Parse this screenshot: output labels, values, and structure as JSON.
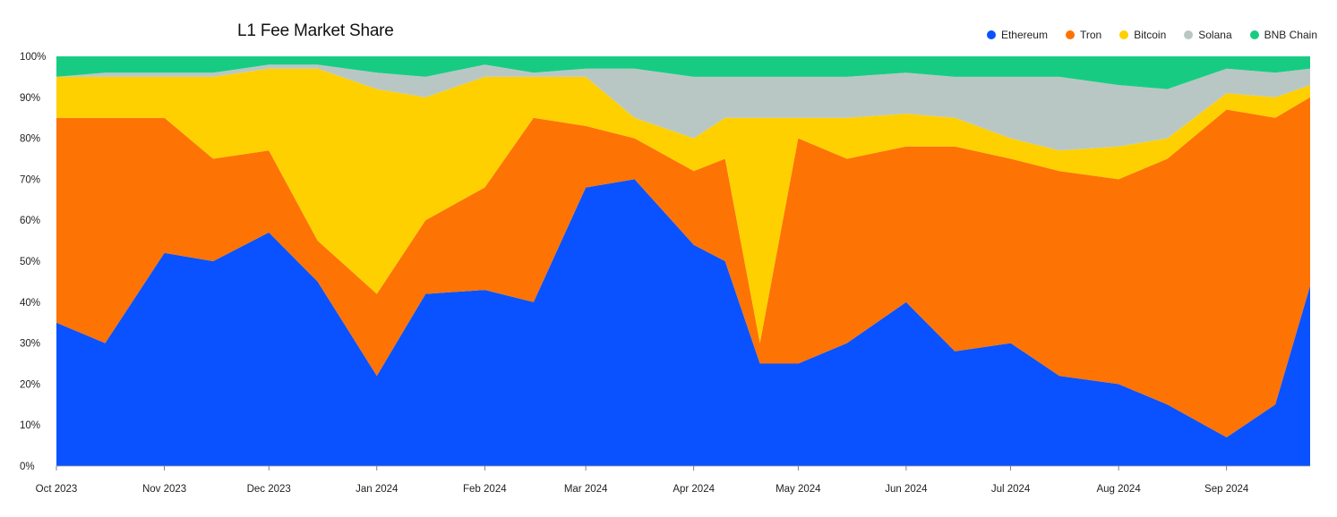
{
  "chart_data": {
    "type": "area",
    "title": "L1 Fee Market Share",
    "xlabel": "",
    "ylabel": "",
    "stacked": true,
    "normalized": true,
    "ylim": [
      0,
      100
    ],
    "y_ticks": [
      "0%",
      "10%",
      "20%",
      "30%",
      "40%",
      "50%",
      "60%",
      "70%",
      "80%",
      "90%",
      "100%"
    ],
    "x_ticks": [
      "Oct 2023",
      "Nov 2023",
      "Dec 2023",
      "Jan 2024",
      "Feb 2024",
      "Mar 2024",
      "Apr 2024",
      "May 2024",
      "Jun 2024",
      "Jul 2024",
      "Aug 2024",
      "Sep 2024"
    ],
    "legend_position": "top-right",
    "grid": false,
    "x": [
      "2023-10-01",
      "2023-10-15",
      "2023-11-01",
      "2023-11-15",
      "2023-12-01",
      "2023-12-15",
      "2024-01-01",
      "2024-01-15",
      "2024-02-01",
      "2024-02-15",
      "2024-03-01",
      "2024-03-15",
      "2024-04-01",
      "2024-04-10",
      "2024-04-20",
      "2024-05-01",
      "2024-05-15",
      "2024-06-01",
      "2024-06-15",
      "2024-07-01",
      "2024-07-15",
      "2024-08-01",
      "2024-08-15",
      "2024-09-01",
      "2024-09-15",
      "2024-09-25"
    ],
    "series": [
      {
        "name": "Ethereum",
        "color": "#0a52ff",
        "values": [
          35,
          30,
          52,
          50,
          57,
          45,
          22,
          42,
          43,
          40,
          68,
          70,
          54,
          50,
          25,
          25,
          30,
          40,
          28,
          30,
          22,
          20,
          15,
          7,
          15,
          44
        ]
      },
      {
        "name": "Tron",
        "color": "#fd7304",
        "values": [
          50,
          55,
          33,
          25,
          20,
          10,
          20,
          18,
          25,
          45,
          15,
          10,
          18,
          25,
          5,
          55,
          45,
          38,
          50,
          45,
          50,
          50,
          60,
          80,
          70,
          46
        ]
      },
      {
        "name": "Bitcoin",
        "color": "#ffd000",
        "values": [
          10,
          10,
          10,
          20,
          20,
          42,
          50,
          30,
          27,
          10,
          12,
          5,
          8,
          10,
          55,
          5,
          10,
          8,
          7,
          5,
          5,
          8,
          5,
          4,
          5,
          3
        ]
      },
      {
        "name": "Solana",
        "color": "#b9c7c4",
        "values": [
          0,
          1,
          1,
          1,
          1,
          1,
          4,
          5,
          3,
          1,
          2,
          12,
          15,
          10,
          10,
          10,
          10,
          10,
          10,
          15,
          18,
          15,
          12,
          6,
          6,
          4
        ]
      },
      {
        "name": "BNB Chain",
        "color": "#17cc82",
        "values": [
          5,
          4,
          4,
          4,
          2,
          2,
          4,
          5,
          2,
          4,
          3,
          3,
          5,
          5,
          5,
          5,
          5,
          4,
          5,
          5,
          5,
          7,
          8,
          3,
          4,
          3
        ]
      }
    ]
  }
}
